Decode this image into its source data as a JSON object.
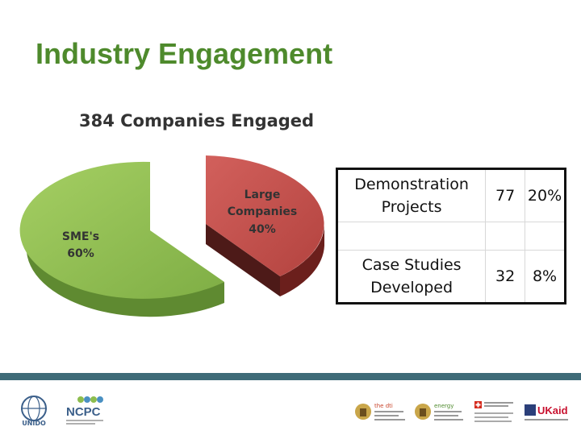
{
  "slide": {
    "title": "Industry Engagement"
  },
  "chart_data": {
    "type": "pie",
    "title": "384 Companies Engaged",
    "slices": [
      {
        "label": "SME's",
        "percent": "60%",
        "value": 60,
        "color": "#8dbd4e"
      },
      {
        "label": "Large Companies",
        "percent": "40%",
        "value": 40,
        "color": "#c0504d"
      }
    ]
  },
  "table": {
    "rows": [
      {
        "label": "Demonstration Projects",
        "count": "77",
        "percent": "20%"
      },
      {
        "label": "",
        "count": "",
        "percent": ""
      },
      {
        "label": "Case Studies Developed",
        "count": "32",
        "percent": "8%"
      }
    ]
  },
  "footer": {
    "logos": [
      {
        "name": "UNIDO",
        "label": "UNIDO"
      },
      {
        "name": "NCPC",
        "label": "NCPC"
      },
      {
        "name": "dti",
        "label": "the dti"
      },
      {
        "name": "energy",
        "label": "energy"
      },
      {
        "name": "swiss",
        "label": ""
      },
      {
        "name": "ukaid",
        "label": "UKaid"
      }
    ]
  },
  "colors": {
    "title_green": "#4e8a2c",
    "footer_bar": "#3f6b78"
  }
}
